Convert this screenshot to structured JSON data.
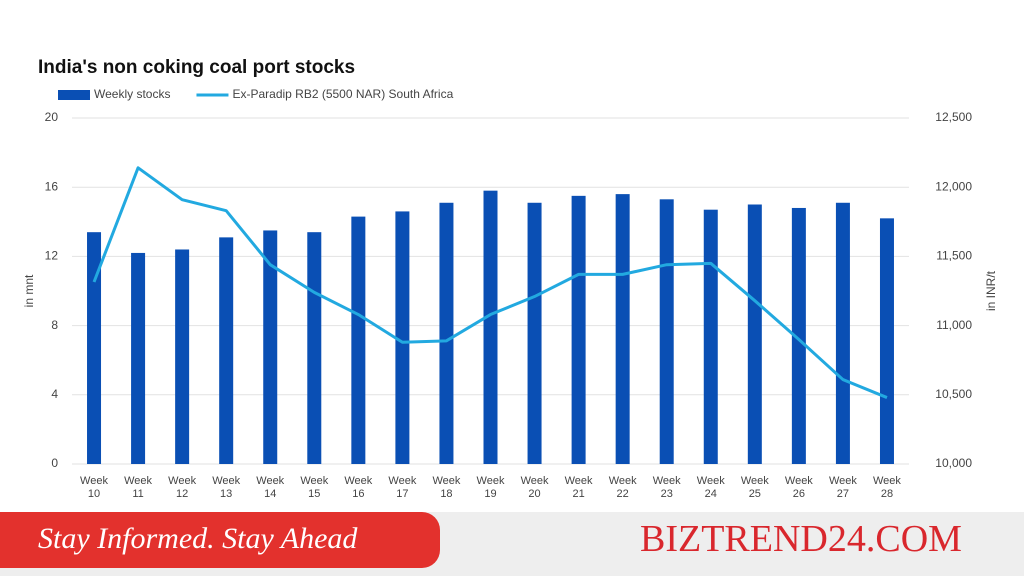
{
  "chart_data": {
    "type": "bar-line",
    "title": "India's non coking coal port stocks",
    "y_label": "in mnt",
    "y2_label": "in INR/t",
    "categories": [
      "Week 10",
      "Week 11",
      "Week 12",
      "Week 13",
      "Week 14",
      "Week 15",
      "Week 16",
      "Week 17",
      "Week 18",
      "Week 19",
      "Week 20",
      "Week 21",
      "Week 22",
      "Week 23",
      "Week 24",
      "Week 25",
      "Week 26",
      "Week 27",
      "Week 28"
    ],
    "series": [
      {
        "name": "Weekly stocks",
        "type": "bar",
        "color": "#0a4fb4",
        "values": [
          13.4,
          12.2,
          12.4,
          13.1,
          13.5,
          13.4,
          14.3,
          14.6,
          15.1,
          15.8,
          15.1,
          15.5,
          15.6,
          15.3,
          14.7,
          15.0,
          14.8,
          15.1,
          14.2
        ]
      },
      {
        "name": "Ex-Paradip RB2 (5500 NAR) South Africa",
        "type": "line",
        "axis": "y2",
        "color": "#22a9e0",
        "values": [
          11315,
          12140,
          11910,
          11830,
          11440,
          11240,
          11080,
          10880,
          10890,
          11080,
          11210,
          11370,
          11370,
          11440,
          11450,
          11180,
          10900,
          10610,
          10480
        ]
      }
    ],
    "ylim": [
      0,
      20
    ],
    "yticks": [
      0,
      4,
      8,
      12,
      16,
      20
    ],
    "y2lim": [
      10000,
      12500
    ],
    "y2ticks": [
      {
        "value": 10000,
        "label": "10,000"
      },
      {
        "value": 10500,
        "label": "10,500"
      },
      {
        "value": 11000,
        "label": "11,000"
      },
      {
        "value": 11500,
        "label": "11,500"
      },
      {
        "value": 12000,
        "label": "12,000"
      },
      {
        "value": 12500,
        "label": "12,500"
      }
    ],
    "grid": true
  },
  "banner": {
    "tagline": "Stay Informed. Stay Ahead",
    "brand": "BIZTREND24.COM"
  }
}
